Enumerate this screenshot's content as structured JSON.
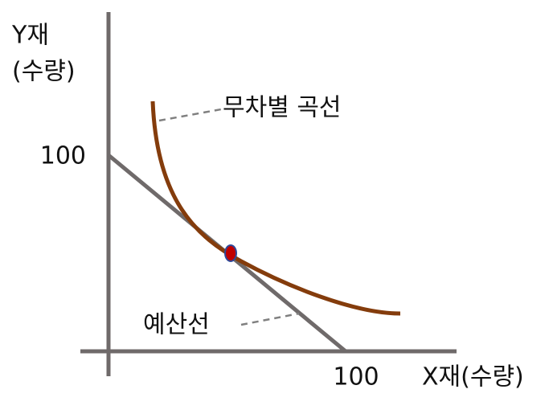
{
  "y_axis": {
    "title": "Y재",
    "unit": "(수량)",
    "value": 100
  },
  "x_axis": {
    "value": 100,
    "title": "X재(수량)"
  },
  "curves": {
    "indifference_curve": "무차별 곡선",
    "budget_line": "예산선"
  }
}
